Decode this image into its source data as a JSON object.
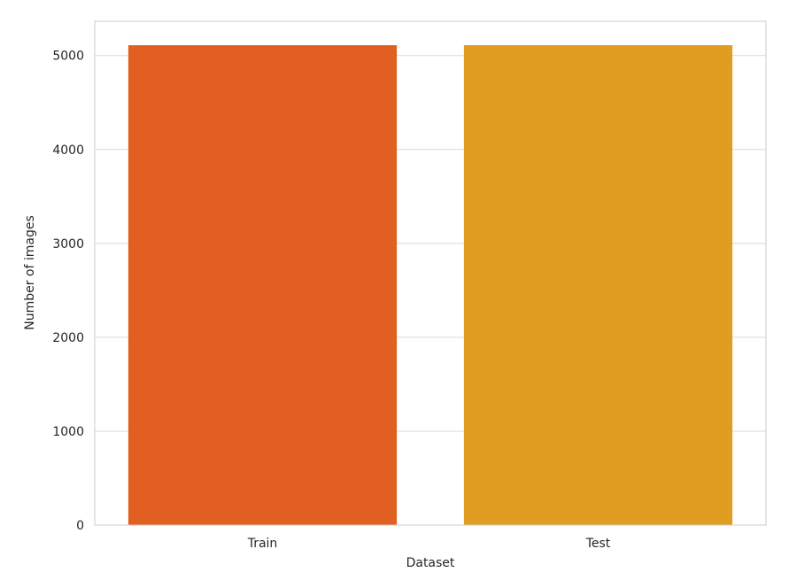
{
  "chart_data": {
    "type": "bar",
    "title": "",
    "xlabel": "Dataset",
    "ylabel": "Number of images",
    "categories": [
      "Train",
      "Test"
    ],
    "values": [
      5110,
      5110
    ],
    "colors": [
      "#E15F20",
      "#DF9E21"
    ],
    "ylim": [
      0,
      5365
    ],
    "yticks": [
      0,
      1000,
      2000,
      3000,
      4000,
      5000
    ],
    "grid": "horizontal",
    "legend": "none"
  }
}
